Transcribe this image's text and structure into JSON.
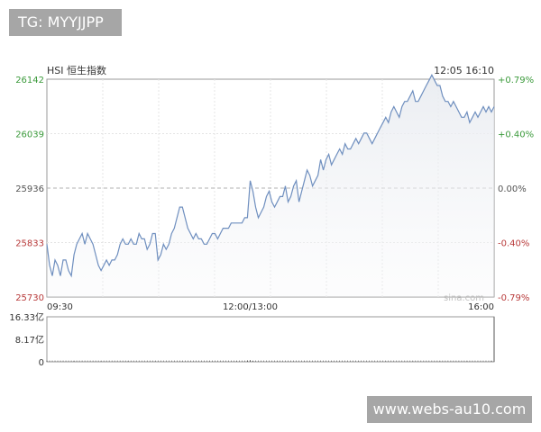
{
  "tag_text": "TG: MYYJJPP",
  "watermark_text": "www.webs-au10.com",
  "chart_data": {
    "type": "line",
    "title": "HSI 恒生指数",
    "timestamp": "12:05 16:10",
    "source": "sina.com",
    "ylim": [
      25730,
      26142
    ],
    "y_ticks": [
      "26142",
      "26039",
      "25936",
      "25833",
      "25730"
    ],
    "y_tick_values": [
      26142,
      26039,
      25936,
      25833,
      25730
    ],
    "y_right_ticks": [
      "+0.79%",
      "+0.40%",
      "0.00%",
      "-0.40%",
      "-0.79%"
    ],
    "x_ticks": [
      "09:30",
      "12:00/13:00",
      "16:00"
    ],
    "x_range": [
      0,
      330
    ],
    "x_tick_positions": [
      0,
      150,
      330
    ],
    "prev_close": 25936,
    "colors": {
      "up": "#3b9a3b",
      "down": "#b83a3a",
      "flat": "#555555",
      "line": "#6f8fbf"
    },
    "series": [
      {
        "values": [
          [
            0,
            25830
          ],
          [
            2,
            25790
          ],
          [
            4,
            25770
          ],
          [
            6,
            25800
          ],
          [
            8,
            25790
          ],
          [
            10,
            25770
          ],
          [
            12,
            25800
          ],
          [
            14,
            25800
          ],
          [
            16,
            25780
          ],
          [
            18,
            25770
          ],
          [
            20,
            25810
          ],
          [
            22,
            25830
          ],
          [
            24,
            25840
          ],
          [
            26,
            25850
          ],
          [
            28,
            25830
          ],
          [
            30,
            25850
          ],
          [
            32,
            25840
          ],
          [
            34,
            25830
          ],
          [
            36,
            25810
          ],
          [
            38,
            25790
          ],
          [
            40,
            25780
          ],
          [
            42,
            25790
          ],
          [
            44,
            25800
          ],
          [
            46,
            25790
          ],
          [
            48,
            25800
          ],
          [
            50,
            25800
          ],
          [
            52,
            25810
          ],
          [
            54,
            25830
          ],
          [
            56,
            25840
          ],
          [
            58,
            25830
          ],
          [
            60,
            25830
          ],
          [
            62,
            25840
          ],
          [
            64,
            25830
          ],
          [
            66,
            25830
          ],
          [
            68,
            25850
          ],
          [
            70,
            25840
          ],
          [
            72,
            25840
          ],
          [
            74,
            25820
          ],
          [
            76,
            25830
          ],
          [
            78,
            25850
          ],
          [
            80,
            25850
          ],
          [
            82,
            25800
          ],
          [
            84,
            25810
          ],
          [
            86,
            25830
          ],
          [
            88,
            25820
          ],
          [
            90,
            25830
          ],
          [
            92,
            25850
          ],
          [
            94,
            25860
          ],
          [
            96,
            25880
          ],
          [
            98,
            25900
          ],
          [
            100,
            25900
          ],
          [
            102,
            25880
          ],
          [
            104,
            25860
          ],
          [
            106,
            25850
          ],
          [
            108,
            25840
          ],
          [
            110,
            25850
          ],
          [
            112,
            25840
          ],
          [
            114,
            25840
          ],
          [
            116,
            25830
          ],
          [
            118,
            25830
          ],
          [
            120,
            25840
          ],
          [
            122,
            25850
          ],
          [
            124,
            25850
          ],
          [
            126,
            25840
          ],
          [
            128,
            25850
          ],
          [
            130,
            25860
          ],
          [
            132,
            25860
          ],
          [
            134,
            25860
          ],
          [
            136,
            25870
          ],
          [
            138,
            25870
          ],
          [
            140,
            25870
          ],
          [
            142,
            25870
          ],
          [
            144,
            25870
          ],
          [
            146,
            25880
          ],
          [
            148,
            25880
          ],
          [
            150,
            25950
          ],
          [
            152,
            25930
          ],
          [
            154,
            25900
          ],
          [
            156,
            25880
          ],
          [
            158,
            25890
          ],
          [
            160,
            25900
          ],
          [
            162,
            25920
          ],
          [
            164,
            25930
          ],
          [
            166,
            25910
          ],
          [
            168,
            25900
          ],
          [
            170,
            25910
          ],
          [
            172,
            25920
          ],
          [
            174,
            25920
          ],
          [
            176,
            25940
          ],
          [
            178,
            25910
          ],
          [
            180,
            25920
          ],
          [
            182,
            25940
          ],
          [
            184,
            25950
          ],
          [
            186,
            25910
          ],
          [
            188,
            25930
          ],
          [
            190,
            25950
          ],
          [
            192,
            25970
          ],
          [
            194,
            25960
          ],
          [
            196,
            25940
          ],
          [
            198,
            25950
          ],
          [
            200,
            25960
          ],
          [
            202,
            25990
          ],
          [
            204,
            25970
          ],
          [
            206,
            25990
          ],
          [
            208,
            26000
          ],
          [
            210,
            25980
          ],
          [
            212,
            25990
          ],
          [
            214,
            26000
          ],
          [
            216,
            26010
          ],
          [
            218,
            26000
          ],
          [
            220,
            26020
          ],
          [
            222,
            26010
          ],
          [
            224,
            26010
          ],
          [
            226,
            26020
          ],
          [
            228,
            26030
          ],
          [
            230,
            26020
          ],
          [
            232,
            26030
          ],
          [
            234,
            26040
          ],
          [
            236,
            26040
          ],
          [
            238,
            26030
          ],
          [
            240,
            26020
          ],
          [
            242,
            26030
          ],
          [
            244,
            26040
          ],
          [
            246,
            26050
          ],
          [
            248,
            26060
          ],
          [
            250,
            26070
          ],
          [
            252,
            26060
          ],
          [
            254,
            26080
          ],
          [
            256,
            26090
          ],
          [
            258,
            26080
          ],
          [
            260,
            26070
          ],
          [
            262,
            26090
          ],
          [
            264,
            26100
          ],
          [
            266,
            26100
          ],
          [
            268,
            26110
          ],
          [
            270,
            26120
          ],
          [
            272,
            26100
          ],
          [
            274,
            26100
          ],
          [
            276,
            26110
          ],
          [
            278,
            26120
          ],
          [
            280,
            26130
          ],
          [
            282,
            26140
          ],
          [
            284,
            26150
          ],
          [
            286,
            26140
          ],
          [
            288,
            26130
          ],
          [
            290,
            26130
          ],
          [
            292,
            26110
          ],
          [
            294,
            26100
          ],
          [
            296,
            26100
          ],
          [
            298,
            26090
          ],
          [
            300,
            26100
          ],
          [
            302,
            26090
          ],
          [
            304,
            26080
          ],
          [
            306,
            26070
          ],
          [
            308,
            26070
          ],
          [
            310,
            26080
          ],
          [
            312,
            26060
          ],
          [
            314,
            26070
          ],
          [
            316,
            26080
          ],
          [
            318,
            26070
          ],
          [
            320,
            26080
          ],
          [
            322,
            26090
          ],
          [
            324,
            26080
          ],
          [
            326,
            26090
          ],
          [
            328,
            26080
          ],
          [
            330,
            26090
          ]
        ]
      }
    ],
    "volume": {
      "y_ticks": [
        "16.33亿",
        "8.17亿",
        "0"
      ],
      "y_tick_values": [
        16.33,
        8.17,
        0
      ],
      "ylim": [
        0,
        16.33
      ],
      "bars": [
        [
          0,
          0.35
        ],
        [
          20,
          0.25
        ],
        [
          40,
          0.2
        ],
        [
          60,
          0.2
        ],
        [
          80,
          0.15
        ],
        [
          100,
          0.15
        ],
        [
          120,
          0.15
        ],
        [
          140,
          0.2
        ],
        [
          148,
          0.5
        ],
        [
          150,
          0.6
        ],
        [
          152,
          0.3
        ],
        [
          170,
          0.15
        ],
        [
          190,
          0.15
        ],
        [
          210,
          0.15
        ],
        [
          230,
          0.15
        ],
        [
          250,
          0.15
        ],
        [
          270,
          0.15
        ],
        [
          290,
          0.15
        ],
        [
          310,
          0.2
        ],
        [
          328,
          0.35
        ],
        [
          330,
          16.3
        ]
      ]
    }
  }
}
